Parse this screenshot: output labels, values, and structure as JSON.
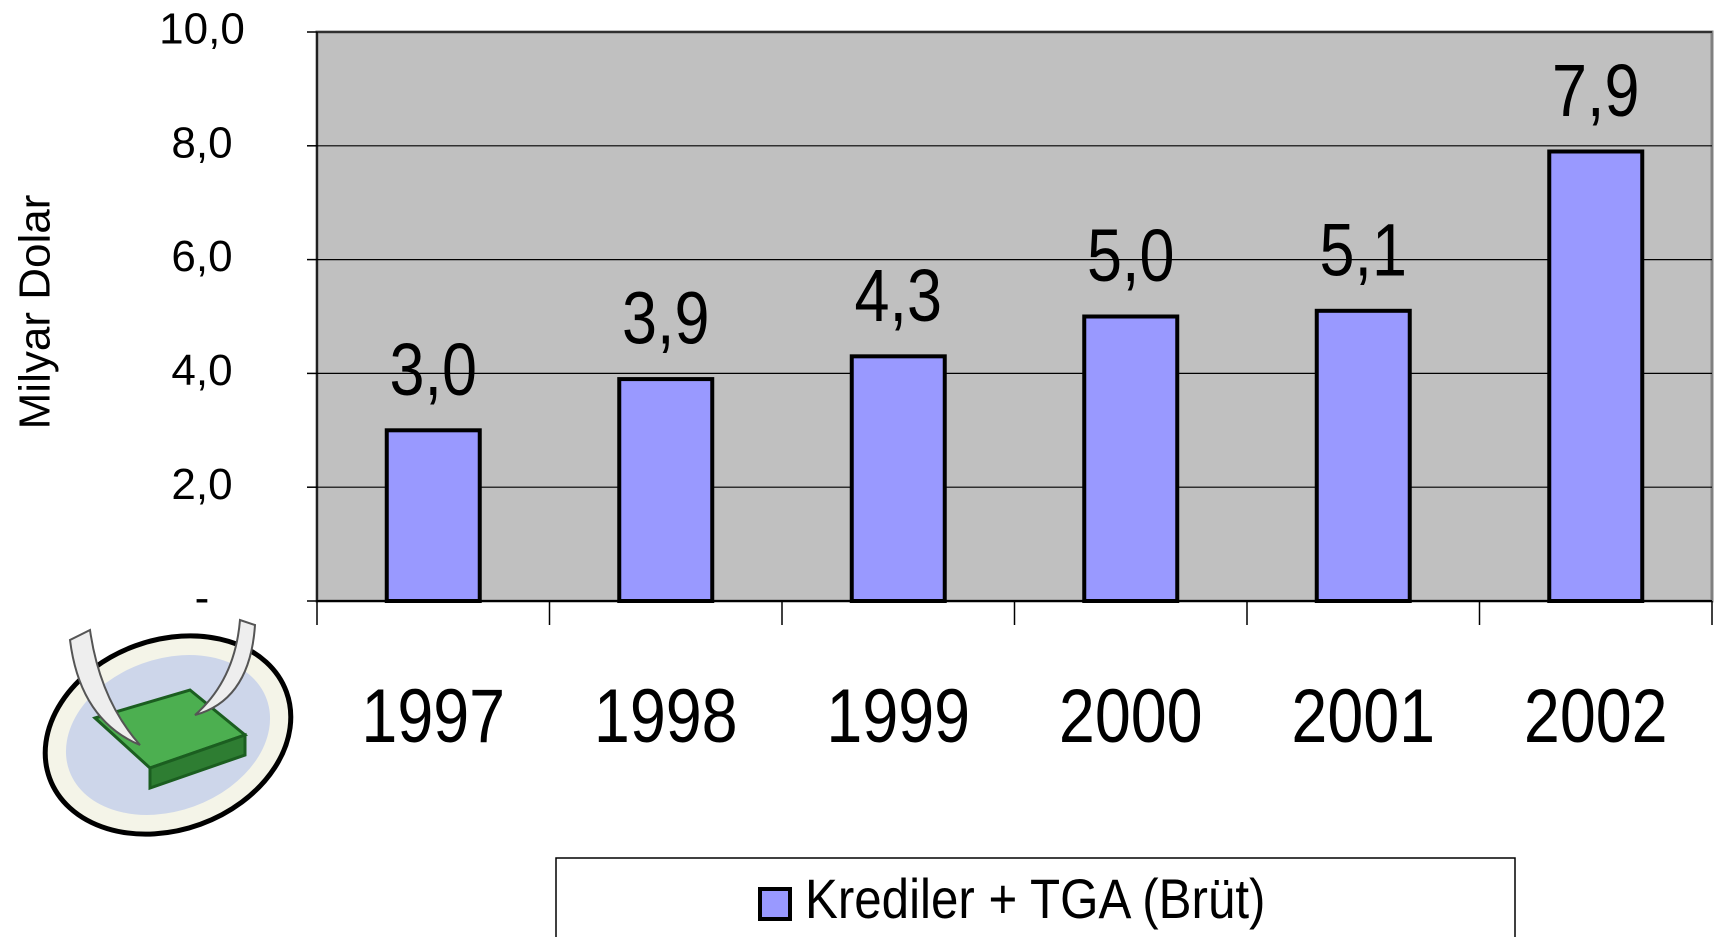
{
  "chart_data": {
    "type": "bar",
    "y_label": "Milyar Dolar",
    "categories": [
      "1997",
      "1998",
      "1999",
      "2000",
      "2001",
      "2002"
    ],
    "series": [
      {
        "name": "Krediler + TGA (Brüt)",
        "color": "#9999ff",
        "values": [
          3.0,
          3.9,
          4.3,
          5.0,
          5.1,
          7.9
        ],
        "value_labels": [
          "3,0",
          "3,9",
          "4,3",
          "5,0",
          "5,1",
          "7,9"
        ]
      }
    ],
    "ylim": [
      0,
      10
    ],
    "yticks": [
      {
        "value": 0,
        "label": "-"
      },
      {
        "value": 2,
        "label": "2,0"
      },
      {
        "value": 4,
        "label": "4,0"
      },
      {
        "value": 6,
        "label": "6,0"
      },
      {
        "value": 8,
        "label": "8,0"
      },
      {
        "value": 10,
        "label": "10,0"
      }
    ],
    "grid": true,
    "plot_background": "#c0c0c0",
    "legend": "bottom"
  }
}
